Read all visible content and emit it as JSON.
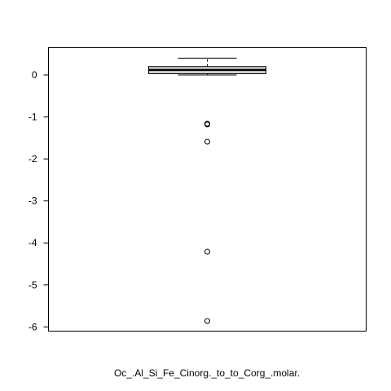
{
  "chart_data": {
    "type": "boxplot",
    "xlabel": "Oc_.Al_Si_Fe_Cinorg._to_to_Corg_.molar.",
    "ylabel": "",
    "title": "",
    "ylim": [
      -6.1,
      0.65
    ],
    "yticks": [
      0,
      -1,
      -2,
      -3,
      -4,
      -5,
      -6
    ],
    "grid": false,
    "colors": {
      "box_fill": "#d3d3d3",
      "stroke": "#000000",
      "background": "#ffffff"
    },
    "box": {
      "whisker_low": 0.0,
      "q1": 0.03,
      "median": 0.12,
      "q3": 0.2,
      "whisker_high": 0.4
    },
    "outliers": [
      -1.16,
      -1.18,
      -1.59,
      -4.21,
      -5.86
    ]
  }
}
